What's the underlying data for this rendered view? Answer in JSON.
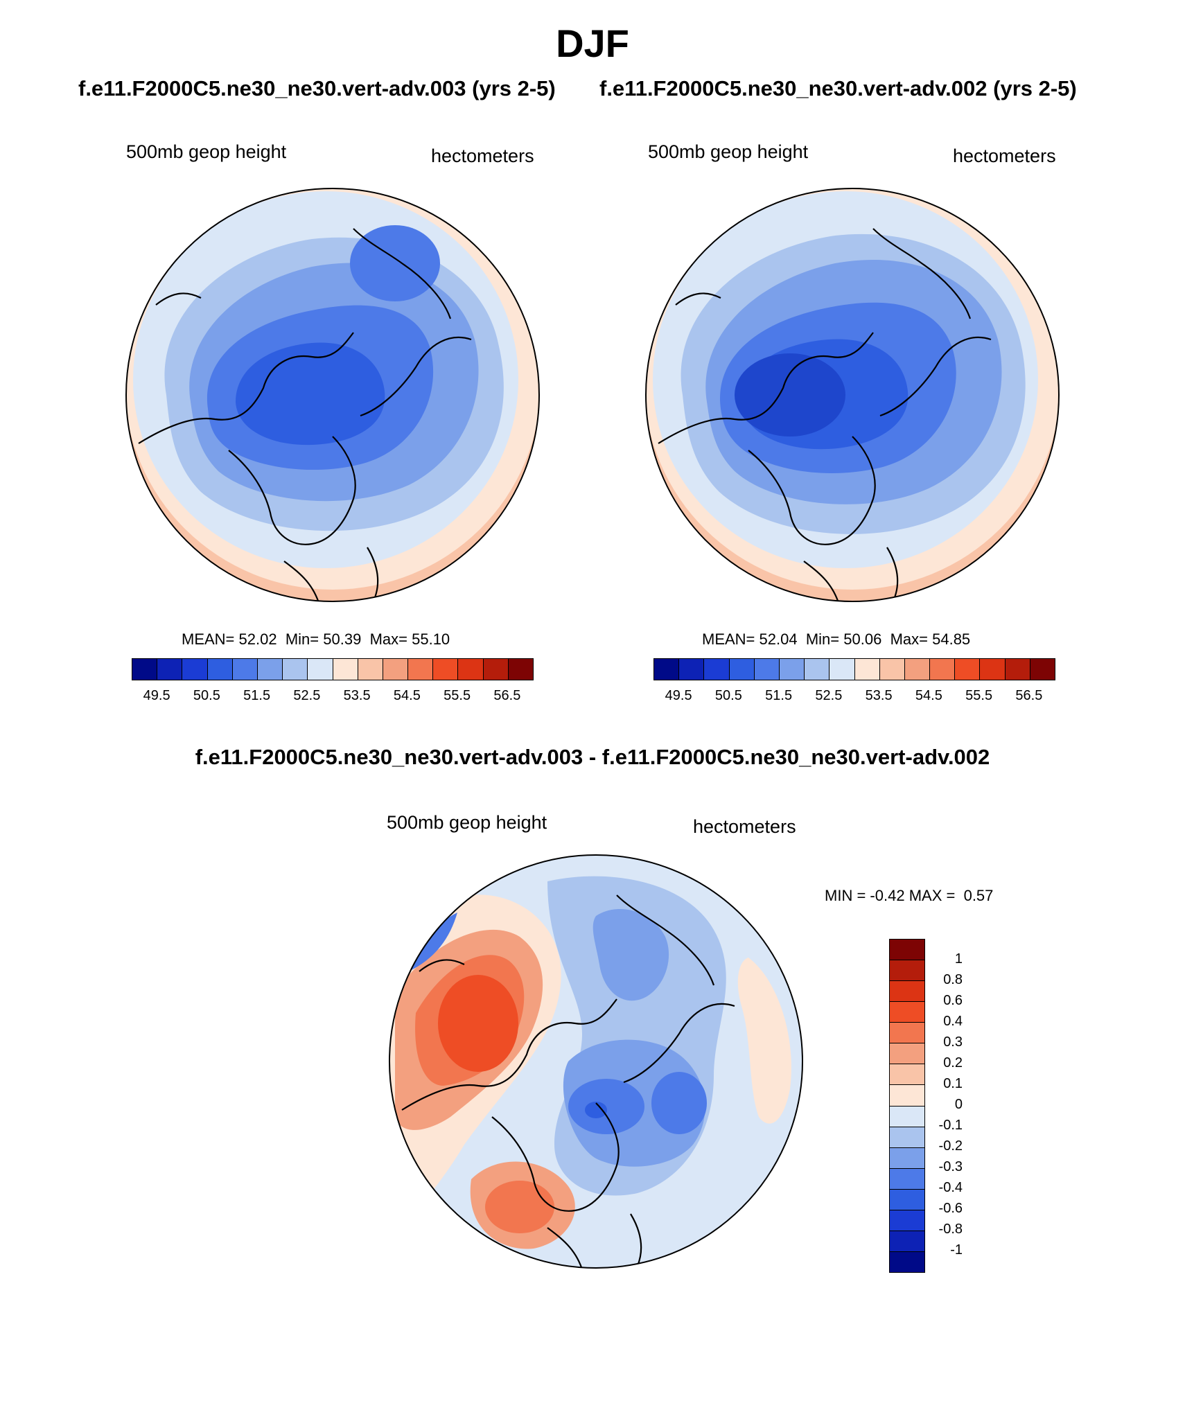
{
  "title": "DJF",
  "panels": {
    "left": {
      "case": "f.e11.F2000C5.ne30_ne30.vert-adv.003 (yrs 2-5)",
      "field": "500mb geop height",
      "units": "hectometers",
      "stats": {
        "mean_label": "MEAN=",
        "mean": "52.02",
        "min_label": "Min=",
        "min": "50.39",
        "max_label": "Max=",
        "max": "55.10"
      },
      "field_levels": {
        "bands": [
          {
            "color": "#aac4ee"
          },
          {
            "color": "#7ba0ea"
          },
          {
            "color": "#4d7ae8"
          },
          {
            "color": "#2e5ee0"
          }
        ]
      }
    },
    "right": {
      "case": "f.e11.F2000C5.ne30_ne30.vert-adv.002 (yrs 2-5)",
      "field": "500mb geop height",
      "units": "hectometers",
      "stats": {
        "mean_label": "MEAN=",
        "mean": "52.04",
        "min_label": "Min=",
        "min": "50.06",
        "max_label": "Max=",
        "max": "54.85"
      },
      "field_levels": {
        "bands": [
          {
            "color": "#aac4ee"
          },
          {
            "color": "#7ba0ea"
          },
          {
            "color": "#4d7ae8"
          },
          {
            "color": "#2e5ee0"
          },
          {
            "color": "#1e46cc"
          }
        ]
      }
    },
    "diff": {
      "title": "f.e11.F2000C5.ne30_ne30.vert-adv.003 - f.e11.F2000C5.ne30_ne30.vert-adv.002",
      "field": "500mb geop height",
      "units": "hectometers",
      "stats": {
        "min_label": "MIN =",
        "min": "-0.42",
        "max_label": "MAX =",
        "max": "0.57"
      }
    }
  },
  "colorbar_main": {
    "tick_labels": [
      "49.5",
      "50.5",
      "51.5",
      "52.5",
      "53.5",
      "54.5",
      "55.5",
      "56.5"
    ],
    "colors": [
      "#000a88",
      "#0d22b5",
      "#1b3cd4",
      "#2e5ee0",
      "#4d7ae8",
      "#7ba0ea",
      "#aac4ee",
      "#dae7f7",
      "#fde6d6",
      "#f9c4a8",
      "#f3a07f",
      "#f2764f",
      "#ee4d25",
      "#dc3414",
      "#b41d0b",
      "#7d0404"
    ]
  },
  "colorbar_diff": {
    "tick_labels": [
      "1",
      "0.8",
      "0.6",
      "0.4",
      "0.3",
      "0.2",
      "0.1",
      "0",
      "-0.1",
      "-0.2",
      "-0.3",
      "-0.4",
      "-0.6",
      "-0.8",
      "-1"
    ],
    "colors": [
      "#7d0404",
      "#b41d0b",
      "#dc3414",
      "#ee4d25",
      "#f2764f",
      "#f3a07f",
      "#f9c4a8",
      "#fde6d6",
      "#dae7f7",
      "#aac4ee",
      "#7ba0ea",
      "#4d7ae8",
      "#2e5ee0",
      "#1b3cd4",
      "#0d22b5",
      "#000a88"
    ]
  },
  "chart_data": [
    {
      "type": "heatmap",
      "title": "500mb geop height",
      "case": "f.e11.F2000C5.ne30_ne30.vert-adv.003 (yrs 2-5)",
      "units": "hectometers",
      "projection": "north-polar stereographic",
      "mean": 52.02,
      "min": 50.39,
      "max": 55.1,
      "contour_levels": [
        49.5,
        50,
        50.5,
        51,
        51.5,
        52,
        52.5,
        53,
        53.5,
        54,
        54.5,
        55,
        55.5,
        56,
        56.5
      ]
    },
    {
      "type": "heatmap",
      "title": "500mb geop height",
      "case": "f.e11.F2000C5.ne30_ne30.vert-adv.002 (yrs 2-5)",
      "units": "hectometers",
      "projection": "north-polar stereographic",
      "mean": 52.04,
      "min": 50.06,
      "max": 54.85,
      "contour_levels": [
        49.5,
        50,
        50.5,
        51,
        51.5,
        52,
        52.5,
        53,
        53.5,
        54,
        54.5,
        55,
        55.5,
        56,
        56.5
      ]
    },
    {
      "type": "heatmap",
      "title": "500mb geop height",
      "case": "f.e11.F2000C5.ne30_ne30.vert-adv.003 - f.e11.F2000C5.ne30_ne30.vert-adv.002",
      "units": "hectometers",
      "projection": "north-polar stereographic",
      "min": -0.42,
      "max": 0.57,
      "contour_levels": [
        -1,
        -0.8,
        -0.6,
        -0.4,
        -0.3,
        -0.2,
        -0.1,
        0,
        0.1,
        0.2,
        0.3,
        0.4,
        0.6,
        0.8,
        1
      ]
    }
  ]
}
